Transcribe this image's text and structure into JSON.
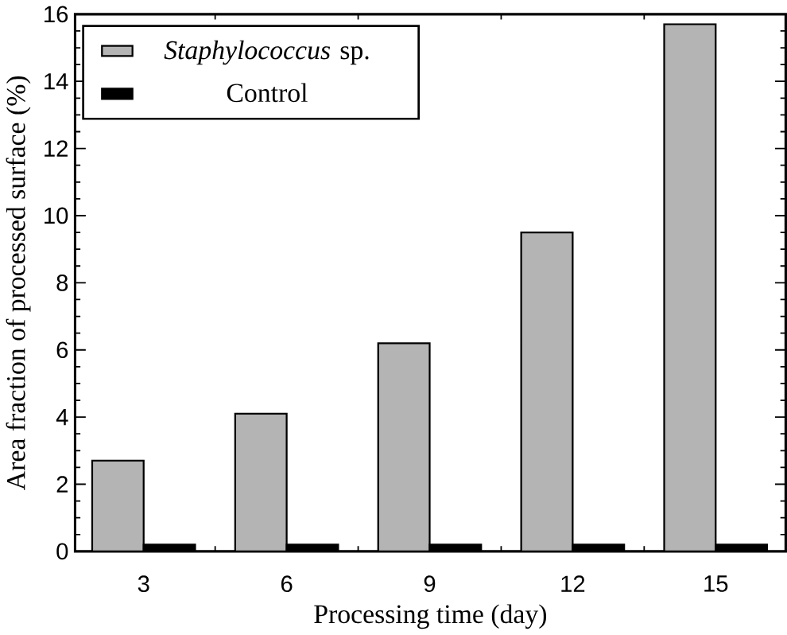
{
  "chart_data": {
    "type": "bar",
    "xlabel": "Processing time (day)",
    "ylabel": "Area fraction of processed surface  (%)",
    "categories": [
      "3",
      "6",
      "9",
      "12",
      "15"
    ],
    "series": [
      {
        "name": "*Staphylococcus* sp.",
        "color": "#b4b4b4",
        "values": [
          2.7,
          4.1,
          6.2,
          9.5,
          15.7
        ]
      },
      {
        "name": "Control",
        "color": "#000000",
        "values": [
          0.2,
          0.2,
          0.2,
          0.2,
          0.2
        ]
      }
    ],
    "ylim": [
      0,
      16
    ],
    "yticks": [
      0,
      2,
      4,
      6,
      8,
      10,
      12,
      14,
      16
    ],
    "grid": false,
    "legend": "top left"
  }
}
